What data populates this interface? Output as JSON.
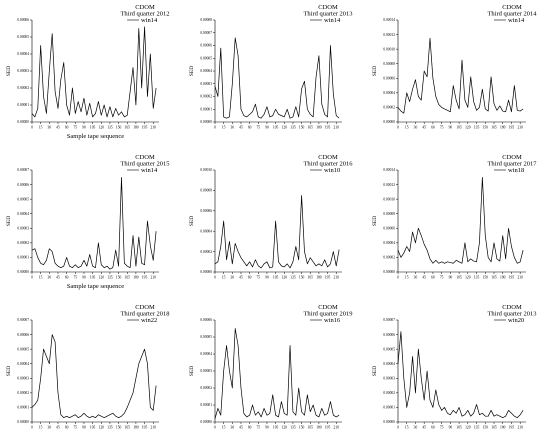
{
  "chart_data": [
    {
      "type": "line",
      "title": "CDOM",
      "subtitle": "Third quarter 2012",
      "legend": "win14",
      "xlabel": "Sample tape sequence",
      "ylabel": "SED",
      "xticks": [
        "0",
        "15",
        "30",
        "45",
        "60",
        "75",
        "90",
        "105",
        "120",
        "135",
        "150",
        "165",
        "180",
        "195",
        "210"
      ],
      "yticks": [
        "0.00000",
        "0.00001",
        "0.00002",
        "0.00003",
        "0.00004",
        "0.00005",
        "0.00006"
      ],
      "xlim": [
        0,
        220
      ],
      "ylim": [
        0,
        6e-05
      ],
      "x": [
        0,
        5,
        10,
        15,
        20,
        25,
        30,
        35,
        40,
        45,
        50,
        55,
        60,
        65,
        70,
        75,
        80,
        85,
        90,
        95,
        100,
        105,
        110,
        115,
        120,
        125,
        130,
        135,
        140,
        145,
        150,
        155,
        160,
        165,
        170,
        175,
        180,
        185,
        190,
        195,
        200,
        205,
        210,
        215
      ],
      "values": [
        5e-06,
        3e-06,
        8e-06,
        4.5e-05,
        1.5e-05,
        5e-06,
        3e-05,
        5.2e-05,
        1.8e-05,
        8e-06,
        2.5e-05,
        3.5e-05,
        1e-05,
        4e-06,
        2e-05,
        5e-06,
        1.2e-05,
        6e-06,
        1.4e-05,
        4e-06,
        1.1e-05,
        3e-06,
        5e-06,
        1.2e-05,
        4e-06,
        1e-05,
        3e-06,
        9e-06,
        3e-06,
        8e-06,
        4e-06,
        6e-06,
        3e-06,
        4e-06,
        1.8e-05,
        3.2e-05,
        1e-05,
        5.5e-05,
        2e-05,
        5.6e-05,
        1.5e-05,
        4e-05,
        8e-06,
        2e-05
      ]
    },
    {
      "type": "line",
      "title": "CDOM",
      "subtitle": "Third quarter 2013",
      "legend": "win14",
      "xlabel": "",
      "ylabel": "SED",
      "xticks": [
        "0",
        "15",
        "30",
        "45",
        "60",
        "75",
        "90",
        "105",
        "120",
        "135",
        "150",
        "165",
        "180",
        "195",
        "210"
      ],
      "yticks": [
        "0.00000",
        "0.00001",
        "0.00002",
        "0.00003",
        "0.00004",
        "0.00005",
        "0.00006",
        "0.00007",
        "0.00008"
      ],
      "xlim": [
        0,
        220
      ],
      "ylim": [
        0,
        8e-05
      ],
      "x": [
        0,
        5,
        10,
        15,
        20,
        25,
        30,
        35,
        40,
        45,
        50,
        55,
        60,
        65,
        70,
        75,
        80,
        85,
        90,
        95,
        100,
        105,
        110,
        115,
        120,
        125,
        130,
        135,
        140,
        145,
        150,
        155,
        160,
        165,
        170,
        175,
        180,
        185,
        190,
        195,
        200,
        205,
        210,
        215
      ],
      "values": [
        2.8e-05,
        2e-05,
        5.8e-05,
        4e-06,
        3e-06,
        4e-06,
        3e-05,
        6.6e-05,
        5.2e-05,
        1e-05,
        5e-06,
        4e-06,
        6e-06,
        8e-06,
        1.4e-05,
        4e-06,
        3e-06,
        6e-06,
        1.2e-05,
        4e-06,
        5e-06,
        1e-05,
        6e-06,
        5e-06,
        4e-06,
        1e-05,
        3e-06,
        4e-06,
        1.2e-05,
        4e-06,
        2.6e-05,
        3.2e-05,
        1e-05,
        6e-06,
        4e-06,
        3.5e-05,
        5.2e-05,
        1.4e-05,
        6e-06,
        4e-06,
        6e-05,
        2.2e-05,
        5e-06,
        3e-06
      ]
    },
    {
      "type": "line",
      "title": "CDOM",
      "subtitle": "Third quarter 2014",
      "legend": "win14",
      "xlabel": "",
      "ylabel": "SED",
      "xticks": [
        "0",
        "15",
        "30",
        "45",
        "60",
        "75",
        "90",
        "105",
        "120",
        "135",
        "150",
        "165",
        "180",
        "195",
        "210"
      ],
      "yticks": [
        "0.00000",
        "0.00002",
        "0.00004",
        "0.00006",
        "0.00008",
        "0.00010",
        "0.00012",
        "0.00014"
      ],
      "xlim": [
        0,
        220
      ],
      "ylim": [
        0,
        0.00014
      ],
      "x": [
        0,
        5,
        10,
        15,
        20,
        25,
        30,
        35,
        40,
        45,
        50,
        55,
        60,
        65,
        70,
        75,
        80,
        85,
        90,
        95,
        100,
        105,
        110,
        115,
        120,
        125,
        130,
        135,
        140,
        145,
        150,
        155,
        160,
        165,
        170,
        175,
        180,
        185,
        190,
        195,
        200,
        205,
        210,
        215
      ],
      "values": [
        2e-05,
        1.5e-05,
        1.2e-05,
        4e-05,
        2.8e-05,
        4.5e-05,
        5.8e-05,
        3.5e-05,
        3e-05,
        7e-05,
        6.2e-05,
        0.000115,
        6e-05,
        3.5e-05,
        2.4e-05,
        2e-05,
        1.8e-05,
        1.6e-05,
        1.4e-05,
        5e-05,
        3e-05,
        1.8e-05,
        8.5e-05,
        3e-05,
        2e-05,
        6.2e-05,
        2.8e-05,
        1.6e-05,
        2e-05,
        4.5e-05,
        1.8e-05,
        1.5e-05,
        6.2e-05,
        2.5e-05,
        1.6e-05,
        2.2e-05,
        1.5e-05,
        1.4e-05,
        3e-05,
        1.4e-05,
        5e-05,
        1.6e-05,
        1.5e-05,
        1.8e-05
      ]
    },
    {
      "type": "line",
      "title": "CDOM",
      "subtitle": "Third quarter 2015",
      "legend": "win14",
      "xlabel": "Sample tape sequence",
      "ylabel": "SED",
      "xticks": [
        "0",
        "15",
        "30",
        "45",
        "60",
        "75",
        "90",
        "105",
        "120",
        "135",
        "150",
        "165",
        "180",
        "195",
        "210"
      ],
      "yticks": [
        "0.00000",
        "0.00001",
        "0.00002",
        "0.00003",
        "0.00004",
        "0.00005",
        "0.00006",
        "0.00007"
      ],
      "xlim": [
        0,
        220
      ],
      "ylim": [
        0,
        7e-05
      ],
      "x": [
        0,
        5,
        10,
        15,
        20,
        25,
        30,
        35,
        40,
        45,
        50,
        55,
        60,
        65,
        70,
        75,
        80,
        85,
        90,
        95,
        100,
        105,
        110,
        115,
        120,
        125,
        130,
        135,
        140,
        145,
        150,
        155,
        160,
        165,
        170,
        175,
        180,
        185,
        190,
        195,
        200,
        205,
        210,
        215
      ],
      "values": [
        1.5e-05,
        1.6e-05,
        1e-05,
        6e-06,
        5e-06,
        8e-06,
        1.6e-05,
        1.4e-05,
        6e-06,
        4e-06,
        3e-06,
        4e-06,
        1e-05,
        4e-06,
        3e-06,
        5e-06,
        3e-06,
        4e-06,
        8e-06,
        4e-06,
        1.2e-05,
        4e-06,
        3e-06,
        2e-05,
        5e-06,
        3e-06,
        4e-06,
        2e-06,
        3e-06,
        1.5e-05,
        4e-06,
        6.5e-05,
        6e-06,
        4e-06,
        3e-06,
        2.5e-05,
        4e-06,
        2.4e-05,
        6e-06,
        5e-06,
        3.5e-05,
        1.8e-05,
        8e-06,
        2.8e-05
      ]
    },
    {
      "type": "line",
      "title": "CDOM",
      "subtitle": "Third quarter 2016",
      "legend": "win10",
      "xlabel": "",
      "ylabel": "SED",
      "xticks": [
        "0",
        "15",
        "30",
        "45",
        "60",
        "75",
        "90",
        "105",
        "120",
        "135",
        "150",
        "165",
        "180",
        "195",
        "210"
      ],
      "yticks": [
        "0.00000",
        "0.00002",
        "0.00004",
        "0.00006",
        "0.00008",
        "0.00010"
      ],
      "xlim": [
        0,
        220
      ],
      "ylim": [
        0,
        0.0001
      ],
      "x": [
        0,
        5,
        10,
        15,
        20,
        25,
        30,
        35,
        40,
        45,
        50,
        55,
        60,
        65,
        70,
        75,
        80,
        85,
        90,
        95,
        100,
        105,
        110,
        115,
        120,
        125,
        130,
        135,
        140,
        145,
        150,
        155,
        160,
        165,
        170,
        175,
        180,
        185,
        190,
        195,
        200,
        205,
        210,
        215
      ],
      "values": [
        8e-06,
        1e-05,
        2.5e-05,
        5e-05,
        1.2e-05,
        3e-05,
        8e-06,
        2.8e-05,
        2e-05,
        1.4e-05,
        1e-05,
        6e-06,
        1e-05,
        5e-06,
        1.2e-05,
        6e-06,
        4e-06,
        8e-06,
        1e-05,
        4e-06,
        5e-06,
        5e-05,
        1e-05,
        6e-06,
        5e-06,
        8e-06,
        4e-06,
        1e-05,
        2.5e-05,
        1.2e-05,
        7.5e-05,
        2e-05,
        8e-06,
        1.4e-05,
        1e-05,
        6e-06,
        8e-06,
        6e-06,
        1.2e-05,
        5e-06,
        8e-06,
        2e-05,
        6e-06,
        2.2e-05
      ]
    },
    {
      "type": "line",
      "title": "CDOM",
      "subtitle": "Third quarter 2017",
      "legend": "win18",
      "xlabel": "",
      "ylabel": "SED",
      "xticks": [
        "0",
        "15",
        "30",
        "45",
        "60",
        "75",
        "90",
        "105",
        "120",
        "135",
        "150",
        "165",
        "180",
        "195",
        "210"
      ],
      "yticks": [
        "0.00000",
        "0.00002",
        "0.00004",
        "0.00006",
        "0.00008",
        "0.00010",
        "0.00012",
        "0.00014"
      ],
      "xlim": [
        0,
        220
      ],
      "ylim": [
        0,
        0.00014
      ],
      "x": [
        0,
        5,
        10,
        15,
        20,
        25,
        30,
        35,
        40,
        45,
        50,
        55,
        60,
        65,
        70,
        75,
        80,
        85,
        90,
        95,
        100,
        105,
        110,
        115,
        120,
        125,
        130,
        135,
        140,
        145,
        150,
        155,
        160,
        165,
        170,
        175,
        180,
        185,
        190,
        195,
        200,
        205,
        210,
        215
      ],
      "values": [
        3e-05,
        2e-05,
        2.6e-05,
        3.5e-05,
        2.8e-05,
        5.5e-05,
        4e-05,
        6e-05,
        5e-05,
        3.8e-05,
        3e-05,
        1.8e-05,
        1.2e-05,
        1.6e-05,
        1.2e-05,
        1.4e-05,
        1.2e-05,
        1.4e-05,
        1.3e-05,
        1.2e-05,
        1.6e-05,
        1.4e-05,
        1.2e-05,
        4e-05,
        1.4e-05,
        1.8e-05,
        1.5e-05,
        1.4e-05,
        4e-05,
        0.00013,
        5e-05,
        2e-05,
        1.4e-05,
        4e-05,
        1.8e-05,
        1.5e-05,
        5e-05,
        1.8e-05,
        6e-05,
        3.5e-05,
        2e-05,
        1.2e-05,
        1.4e-05,
        3e-05
      ]
    },
    {
      "type": "line",
      "title": "CDOM",
      "subtitle": "Third quarter 2018",
      "legend": "win22",
      "xlabel": "",
      "ylabel": "SED",
      "xticks": [
        "0",
        "15",
        "30",
        "45",
        "60",
        "75",
        "90",
        "105",
        "120",
        "135",
        "150",
        "165",
        "180",
        "195",
        "210"
      ],
      "yticks": [
        "0.00000",
        "0.00001",
        "0.00002",
        "0.00003",
        "0.00004",
        "0.00005",
        "0.00006",
        "0.00007"
      ],
      "xlim": [
        0,
        220
      ],
      "ylim": [
        0,
        7e-05
      ],
      "x": [
        0,
        5,
        10,
        15,
        20,
        25,
        30,
        35,
        40,
        45,
        50,
        55,
        60,
        65,
        70,
        75,
        80,
        85,
        90,
        95,
        100,
        105,
        110,
        115,
        120,
        125,
        130,
        135,
        140,
        145,
        150,
        155,
        160,
        165,
        170,
        175,
        180,
        185,
        190,
        195,
        200,
        205,
        210,
        215
      ],
      "values": [
        1e-05,
        1.2e-05,
        1.5e-05,
        3e-05,
        5e-05,
        4.5e-05,
        4e-05,
        6e-05,
        5.5e-05,
        2e-05,
        5e-06,
        3e-06,
        4e-06,
        3e-06,
        4e-06,
        5e-06,
        3e-06,
        4e-06,
        6e-06,
        4e-06,
        3e-06,
        4e-06,
        3e-06,
        5e-06,
        4e-06,
        3e-06,
        4e-06,
        5e-06,
        6e-06,
        4e-06,
        3e-06,
        4e-06,
        6e-06,
        1e-05,
        1.5e-05,
        2e-05,
        3e-05,
        4e-05,
        4.5e-05,
        5e-05,
        4e-05,
        1e-05,
        8e-06,
        2.5e-05
      ]
    },
    {
      "type": "line",
      "title": "CDOM",
      "subtitle": "Third quarter 2019",
      "legend": "win16",
      "xlabel": "",
      "ylabel": "SED",
      "xticks": [
        "0",
        "15",
        "30",
        "45",
        "60",
        "75",
        "90",
        "105",
        "120",
        "135",
        "150",
        "165",
        "180",
        "195",
        "210"
      ],
      "yticks": [
        "0.00000",
        "0.00001",
        "0.00002",
        "0.00003",
        "0.00004",
        "0.00005",
        "0.00006"
      ],
      "xlim": [
        0,
        220
      ],
      "ylim": [
        0,
        6e-05
      ],
      "x": [
        0,
        5,
        10,
        15,
        20,
        25,
        30,
        35,
        40,
        45,
        50,
        55,
        60,
        65,
        70,
        75,
        80,
        85,
        90,
        95,
        100,
        105,
        110,
        115,
        120,
        125,
        130,
        135,
        140,
        145,
        150,
        155,
        160,
        165,
        170,
        175,
        180,
        185,
        190,
        195,
        200,
        205,
        210,
        215
      ],
      "values": [
        2e-06,
        8e-06,
        4e-06,
        3e-05,
        4.5e-05,
        3e-05,
        2e-05,
        5.5e-05,
        4.5e-05,
        2e-05,
        5e-06,
        3e-06,
        4e-06,
        1e-05,
        4e-06,
        6e-06,
        3e-06,
        8e-06,
        4e-06,
        5e-06,
        1.6e-05,
        4e-06,
        3e-06,
        1.2e-05,
        5e-06,
        4e-06,
        4.5e-05,
        6e-06,
        4e-06,
        2e-05,
        6e-06,
        4e-06,
        1.6e-05,
        6e-06,
        1e-05,
        4e-06,
        3e-06,
        8e-06,
        4e-06,
        5e-06,
        1.2e-05,
        4e-06,
        3e-06,
        4e-06
      ]
    },
    {
      "type": "line",
      "title": "CDOM",
      "subtitle": "Third quarter 2013",
      "legend": "win20",
      "xlabel": "",
      "ylabel": "SED",
      "xticks": [
        "0",
        "15",
        "30",
        "45",
        "60",
        "75",
        "90",
        "105",
        "120",
        "135",
        "150",
        "165",
        "180",
        "195",
        "210"
      ],
      "yticks": [
        "0.00000",
        "0.00001",
        "0.00002",
        "0.00003",
        "0.00004",
        "0.00005",
        "0.00006",
        "0.00007"
      ],
      "xlim": [
        0,
        220
      ],
      "ylim": [
        0,
        7e-05
      ],
      "x": [
        0,
        5,
        10,
        15,
        20,
        25,
        30,
        35,
        40,
        45,
        50,
        55,
        60,
        65,
        70,
        75,
        80,
        85,
        90,
        95,
        100,
        105,
        110,
        115,
        120,
        125,
        130,
        135,
        140,
        145,
        150,
        155,
        160,
        165,
        170,
        175,
        180,
        185,
        190,
        195,
        200,
        205,
        210,
        215
      ],
      "values": [
        4e-05,
        6.2e-05,
        3e-05,
        1e-05,
        2e-05,
        4.5e-05,
        2e-05,
        5e-05,
        3e-05,
        1.5e-05,
        3.5e-05,
        1.5e-05,
        1e-05,
        2.2e-05,
        1.2e-05,
        8e-06,
        1e-05,
        6e-06,
        5e-06,
        8e-06,
        6e-06,
        1e-05,
        4e-06,
        5e-06,
        8e-06,
        4e-06,
        6e-06,
        1.2e-05,
        5e-06,
        6e-06,
        4e-06,
        4e-06,
        8e-06,
        4e-06,
        5e-06,
        4e-06,
        3e-06,
        4e-06,
        8e-06,
        6e-06,
        4e-06,
        3e-06,
        5e-06,
        8e-06
      ]
    }
  ]
}
